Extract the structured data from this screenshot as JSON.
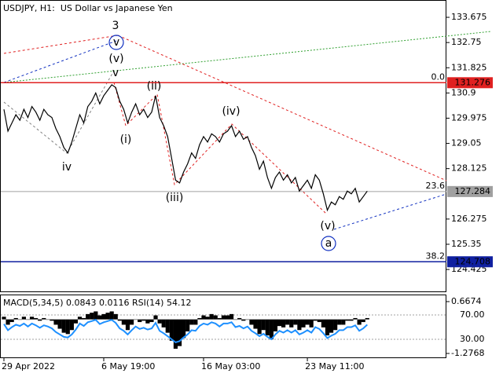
{
  "chart_data": {
    "type": "line",
    "title": "USDJPY, H1:  US Dollar vs Japanese Yen",
    "categories": [
      "29 Apr 2022",
      null,
      null,
      null,
      null,
      null,
      null,
      null,
      null,
      null,
      null,
      null,
      null,
      null,
      null,
      null,
      null,
      null,
      null,
      null,
      null,
      null,
      null,
      null,
      null,
      "6 May 19:00",
      null,
      null,
      null,
      null,
      null,
      null,
      null,
      null,
      null,
      null,
      null,
      null,
      null,
      null,
      null,
      null,
      null,
      null,
      null,
      null,
      null,
      null,
      null,
      null,
      "16 May 03:00",
      null,
      null,
      null,
      null,
      null,
      null,
      null,
      null,
      null,
      null,
      null,
      null,
      null,
      null,
      null,
      null,
      null,
      null,
      null,
      null,
      null,
      null,
      null,
      null,
      null,
      "23 May 11:00",
      null,
      null,
      null,
      null,
      null,
      null,
      null,
      null,
      null,
      null,
      null,
      null,
      null,
      null,
      null
    ],
    "series": [
      {
        "name": "USDJPY",
        "color": "#000000",
        "values": [
          130.3,
          129.5,
          129.8,
          130.1,
          129.9,
          130.3,
          130.0,
          130.4,
          130.2,
          129.9,
          130.3,
          130.1,
          130.0,
          129.6,
          129.3,
          128.9,
          128.7,
          129.1,
          129.6,
          130.1,
          129.8,
          130.4,
          130.6,
          130.9,
          130.5,
          130.8,
          131.0,
          131.2,
          131.1,
          130.6,
          130.3,
          129.8,
          130.2,
          130.5,
          130.1,
          130.3,
          130.0,
          130.2,
          130.8,
          130.0,
          129.7,
          129.3,
          128.5,
          127.7,
          127.6,
          128.0,
          128.3,
          128.7,
          128.5,
          129.0,
          129.3,
          129.1,
          129.4,
          129.3,
          129.1,
          129.4,
          129.5,
          129.7,
          129.3,
          129.5,
          129.2,
          129.3,
          128.9,
          128.6,
          128.1,
          128.4,
          127.8,
          127.4,
          127.8,
          128.0,
          127.7,
          127.9,
          127.6,
          127.8,
          127.3,
          127.5,
          127.7,
          127.4,
          127.9,
          127.7,
          127.2,
          126.6,
          126.9,
          126.8,
          127.1,
          127.0,
          127.3,
          127.2,
          127.4,
          126.9,
          127.1,
          127.3
        ]
      }
    ],
    "ylim": [
      123.65,
      134.31
    ],
    "yticks": [
      133.675,
      132.75,
      131.825,
      130.9,
      129.975,
      129.05,
      128.125,
      126.275,
      125.35,
      124.425
    ],
    "levels": [
      {
        "value": 131.276,
        "fib": "0.0",
        "color": "#e02020"
      },
      {
        "value": 127.284,
        "fib": "23.6",
        "color": "#a0a0a0"
      },
      {
        "value": 124.708,
        "fib": "38.2",
        "color": "#1020a0"
      }
    ],
    "annotations": [
      {
        "text": "3",
        "color": "#e02020"
      },
      {
        "text": "v",
        "color": "#1030c0"
      },
      {
        "text": "(v)",
        "color": "#e02020"
      },
      {
        "text": "v",
        "color": "#808080"
      },
      {
        "text": "(ii)",
        "color": "#e02020"
      },
      {
        "text": "(i)",
        "color": "#e02020"
      },
      {
        "text": "iv",
        "color": "#808080"
      },
      {
        "text": "(iii)",
        "color": "#e02020"
      },
      {
        "text": "(iv)",
        "color": "#e02020"
      },
      {
        "text": "(v)",
        "color": "#e02020"
      },
      {
        "text": "a",
        "color": "#1030c0"
      }
    ],
    "indicator": {
      "label": "MACD(5,34,5) 0.0843 0.0116 RSI(14) 54.12",
      "macd": {
        "name": "MACD",
        "color": "#000000",
        "values": [
          0.1,
          -0.2,
          -0.1,
          0.05,
          0,
          0.1,
          0,
          0.1,
          0.05,
          -0.05,
          0.05,
          0,
          -0.05,
          -0.2,
          -0.35,
          -0.5,
          -0.55,
          -0.4,
          -0.15,
          0.1,
          0.05,
          0.2,
          0.25,
          0.3,
          0.15,
          0.2,
          0.25,
          0.3,
          0.2,
          -0.05,
          -0.2,
          -0.4,
          -0.2,
          0,
          -0.1,
          -0.05,
          -0.15,
          -0.1,
          0.15,
          -0.15,
          -0.3,
          -0.5,
          -0.8,
          -1.1,
          -1.0,
          -0.7,
          -0.45,
          -0.2,
          -0.2,
          0.05,
          0.15,
          0.1,
          0.2,
          0.15,
          0.05,
          0.15,
          0.15,
          0.2,
          0,
          0.05,
          -0.05,
          0,
          -0.2,
          -0.35,
          -0.55,
          -0.4,
          -0.6,
          -0.75,
          -0.45,
          -0.25,
          -0.3,
          -0.2,
          -0.3,
          -0.2,
          -0.4,
          -0.3,
          -0.2,
          -0.3,
          -0.05,
          -0.1,
          -0.3,
          -0.6,
          -0.5,
          -0.4,
          -0.2,
          -0.2,
          -0.05,
          -0.05,
          0.05,
          -0.2,
          -0.1,
          0.05
        ]
      },
      "ylim": [
        -1.424,
        0.903
      ],
      "yticks": [
        0.6674,
        -1.2768
      ],
      "rsi": {
        "name": "RSI",
        "color": "#1e90ff",
        "values": [
          55,
          45,
          50,
          54,
          52,
          56,
          51,
          56,
          53,
          49,
          53,
          51,
          48,
          42,
          38,
          34,
          33,
          38,
          46,
          56,
          52,
          58,
          60,
          62,
          55,
          58,
          60,
          62,
          57,
          48,
          44,
          38,
          45,
          51,
          47,
          49,
          46,
          48,
          57,
          44,
          40,
          35,
          30,
          25,
          27,
          33,
          38,
          45,
          44,
          52,
          56,
          54,
          58,
          56,
          51,
          56,
          56,
          58,
          50,
          52,
          48,
          51,
          44,
          40,
          35,
          39,
          34,
          30,
          38,
          44,
          41,
          45,
          41,
          45,
          38,
          41,
          45,
          41,
          50,
          47,
          40,
          32,
          36,
          39,
          45,
          45,
          50,
          50,
          53,
          44,
          48,
          54
        ]
      },
      "y2lim": [
        0.3,
        102.3
      ],
      "y2ticks": [
        {
          "value": 70,
          "label": "70.00"
        },
        {
          "value": 30,
          "label": "30.00"
        }
      ]
    }
  }
}
